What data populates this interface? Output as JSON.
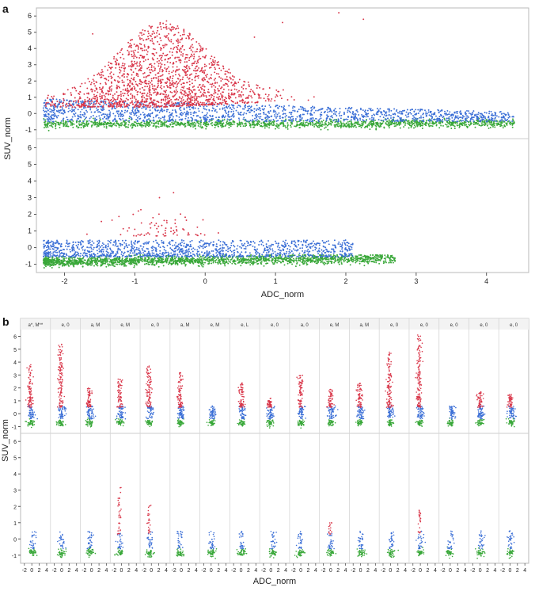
{
  "figure": {
    "panel_a_label": "a",
    "panel_b_label": "b"
  },
  "colors": {
    "high": "#d9374a",
    "mid": "#3b6fd6",
    "low": "#3aa83a"
  },
  "chart_data": [
    {
      "type": "scatter",
      "panel": "a",
      "xlabel": "ADC_norm",
      "ylabel": "SUV_norm",
      "x_ticks": [
        "-2",
        "-1",
        "0",
        "1",
        "2",
        "3",
        "4"
      ],
      "xlim": [
        -2.4,
        4.6
      ],
      "grid": false,
      "subplots": [
        {
          "name": "",
          "ylim": [
            -1.4,
            6.4
          ],
          "y_ticks": [
            "-1",
            "0",
            "1",
            "2",
            "3",
            "4",
            "5",
            "6"
          ],
          "clusters": [
            {
              "series": "high",
              "x_range": [
                -2.3,
                2.3
              ],
              "y_range": [
                0.3,
                6.1
              ],
              "x_peak": -0.6,
              "y_peak": 5.6
            },
            {
              "series": "mid",
              "x_range": [
                -2.3,
                4.4
              ],
              "y_range": [
                -0.6,
                1.2
              ]
            },
            {
              "series": "low",
              "x_range": [
                -2.3,
                4.4
              ],
              "y_range": [
                -1.0,
                -0.3
              ]
            }
          ]
        },
        {
          "name": "",
          "ylim": [
            -1.4,
            6.4
          ],
          "y_ticks": [
            "-1",
            "0",
            "1",
            "2",
            "3",
            "4",
            "5",
            "6"
          ],
          "clusters": [
            {
              "series": "high",
              "x_range": [
                -1.2,
                0.6
              ],
              "y_range": [
                0.7,
                3.3
              ]
            },
            {
              "series": "mid",
              "x_range": [
                -2.3,
                2.2
              ],
              "y_range": [
                -0.7,
                0.5
              ]
            },
            {
              "series": "low",
              "x_range": [
                -2.3,
                2.7
              ],
              "y_range": [
                -1.4,
                -0.5
              ]
            }
          ]
        }
      ]
    },
    {
      "type": "scatter",
      "panel": "b",
      "xlabel": "ADC_norm",
      "ylabel": "SUV_norm",
      "x_ticks": [
        "-2",
        "0",
        "2",
        "4"
      ],
      "xlim": [
        -2.6,
        4.6
      ],
      "y_ticks": [
        "-1",
        "0",
        "1",
        "2",
        "3",
        "4",
        "5",
        "6"
      ],
      "ylim": [
        -1.4,
        6.4
      ],
      "facets": [
        {
          "label": "a*, M**",
          "top": {
            "high_max": 3.8,
            "x_center": -0.4
          },
          "bottom": {
            "high_max": 0.0,
            "x_center": 0.2
          }
        },
        {
          "label": "e, 0",
          "top": {
            "high_max": 5.6,
            "x_center": -0.2
          },
          "bottom": {
            "high_max": 0.0,
            "x_center": 0.0
          }
        },
        {
          "label": "a, M",
          "top": {
            "high_max": 2.0,
            "x_center": -0.6
          },
          "bottom": {
            "high_max": 0.0,
            "x_center": -0.4
          }
        },
        {
          "label": "e, M",
          "top": {
            "high_max": 2.7,
            "x_center": -0.3
          },
          "bottom": {
            "high_max": 3.2,
            "x_center": -0.4
          }
        },
        {
          "label": "e, 0",
          "top": {
            "high_max": 3.7,
            "x_center": -0.6
          },
          "bottom": {
            "high_max": 2.1,
            "x_center": -0.4
          }
        },
        {
          "label": "a, M",
          "top": {
            "high_max": 3.2,
            "x_center": -0.2
          },
          "bottom": {
            "high_max": 0.0,
            "x_center": -0.4
          }
        },
        {
          "label": "e, M",
          "top": {
            "high_max": 0.0,
            "x_center": 0.2
          },
          "bottom": {
            "high_max": 0.0,
            "x_center": 0.2
          }
        },
        {
          "label": "e, L",
          "top": {
            "high_max": 2.4,
            "x_center": 0.2
          },
          "bottom": {
            "high_max": 0.0,
            "x_center": 0.2
          }
        },
        {
          "label": "e, 0",
          "top": {
            "high_max": 1.2,
            "x_center": -0.2
          },
          "bottom": {
            "high_max": 0.0,
            "x_center": 0.6
          }
        },
        {
          "label": "a, 0",
          "top": {
            "high_max": 3.0,
            "x_center": 0.0
          },
          "bottom": {
            "high_max": 0.0,
            "x_center": -0.2
          }
        },
        {
          "label": "e, M",
          "top": {
            "high_max": 1.9,
            "x_center": 0.0
          },
          "bottom": {
            "high_max": 1.0,
            "x_center": 0.0
          }
        },
        {
          "label": "a, M",
          "top": {
            "high_max": 2.4,
            "x_center": -0.2
          },
          "bottom": {
            "high_max": 0.0,
            "x_center": 0.0
          }
        },
        {
          "label": "e, 0",
          "top": {
            "high_max": 4.8,
            "x_center": -0.2
          },
          "bottom": {
            "high_max": 0.0,
            "x_center": 0.2
          }
        },
        {
          "label": "e, 0",
          "top": {
            "high_max": 6.2,
            "x_center": -0.2
          },
          "bottom": {
            "high_max": 1.8,
            "x_center": 0.0
          }
        },
        {
          "label": "e, 0",
          "top": {
            "high_max": 0.0,
            "x_center": 0.2
          },
          "bottom": {
            "high_max": 0.0,
            "x_center": 0.0
          }
        },
        {
          "label": "e, 0",
          "top": {
            "high_max": 1.7,
            "x_center": 0.0
          },
          "bottom": {
            "high_max": 0.0,
            "x_center": 0.2
          }
        },
        {
          "label": "e, 0",
          "top": {
            "high_max": 1.5,
            "x_center": 0.2
          },
          "bottom": {
            "high_max": 0.0,
            "x_center": 0.0
          }
        }
      ]
    }
  ]
}
